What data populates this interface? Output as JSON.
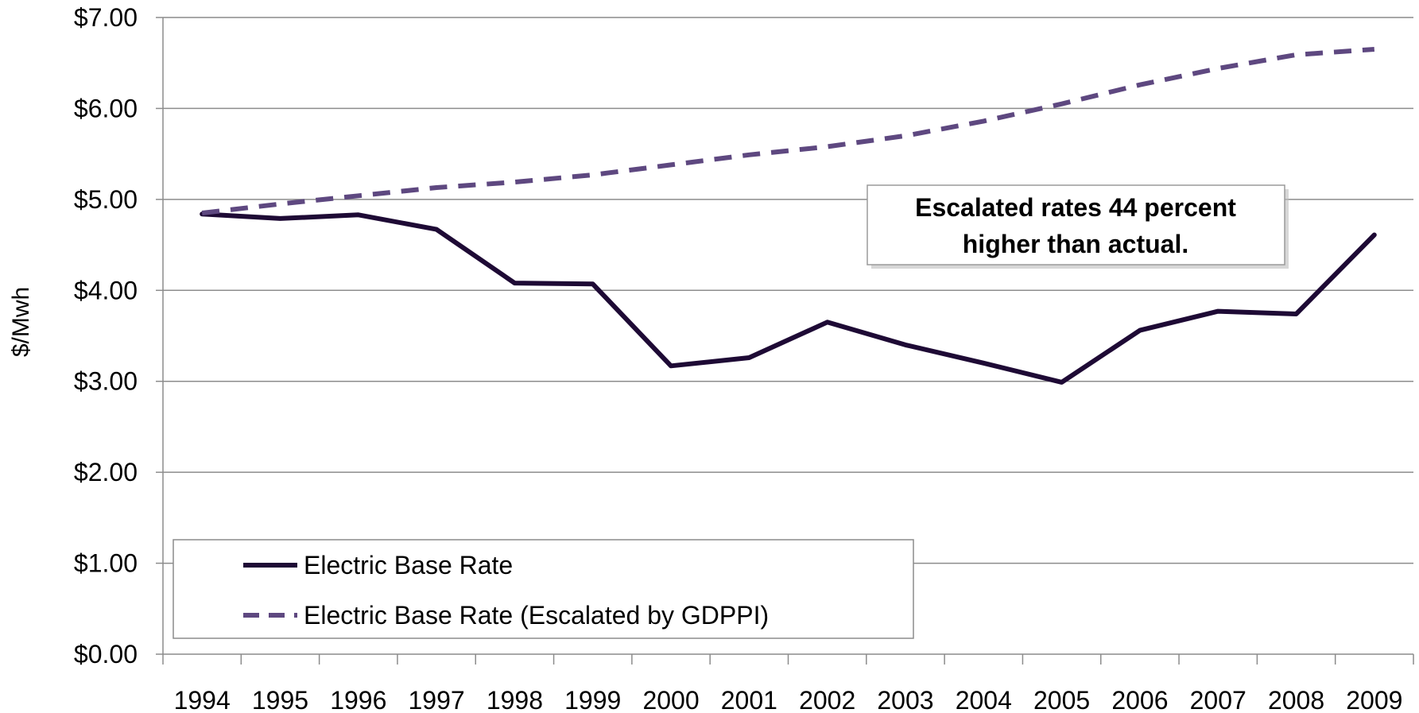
{
  "chart_data": {
    "type": "line",
    "ylabel": "$/Mwh",
    "xlabel": "",
    "categories": [
      "1994",
      "1995",
      "1996",
      "1997",
      "1998",
      "1999",
      "2000",
      "2001",
      "2002",
      "2003",
      "2004",
      "2005",
      "2006",
      "2007",
      "2008",
      "2009"
    ],
    "ylim": [
      0,
      7
    ],
    "y_ticks": [
      0,
      1,
      2,
      3,
      4,
      5,
      6,
      7
    ],
    "y_tick_labels": [
      "$0.00",
      "$1.00",
      "$2.00",
      "$3.00",
      "$4.00",
      "$5.00",
      "$6.00",
      "$7.00"
    ],
    "grid": "horizontal",
    "legend_position": "bottom-left",
    "series": [
      {
        "name": "Electric Base Rate",
        "style": "solid",
        "color": "#1e0a35",
        "values": [
          4.84,
          4.79,
          4.83,
          4.67,
          4.08,
          4.07,
          3.17,
          3.26,
          3.65,
          3.4,
          3.2,
          2.99,
          3.56,
          3.77,
          3.74,
          4.61
        ]
      },
      {
        "name": "Electric Base Rate (Escalated by GDPPI)",
        "style": "dashed",
        "color": "#5e4880",
        "values": [
          4.85,
          4.95,
          5.04,
          5.13,
          5.19,
          5.27,
          5.38,
          5.49,
          5.58,
          5.7,
          5.86,
          6.05,
          6.26,
          6.44,
          6.59,
          6.65
        ]
      }
    ],
    "annotation": {
      "line1": "Escalated rates 44 percent",
      "line2": "higher than actual."
    }
  }
}
